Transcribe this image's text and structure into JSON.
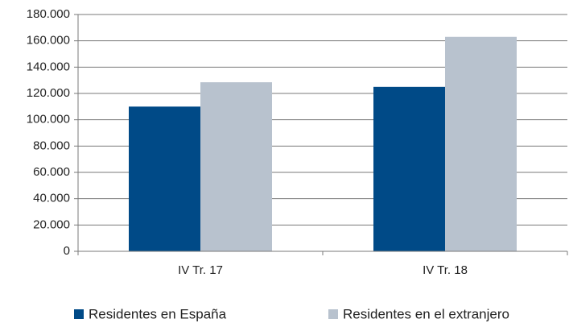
{
  "chart_data": {
    "type": "bar",
    "categories": [
      "IV Tr. 17",
      "IV Tr. 18"
    ],
    "series": [
      {
        "name": "Residentes en España",
        "color": "#004a87",
        "values": [
          110000,
          125000
        ]
      },
      {
        "name": "Residentes en el extranjero",
        "color": "#b8c2ce",
        "values": [
          128500,
          163000
        ]
      }
    ],
    "ylim": [
      0,
      180000
    ],
    "yticks": [
      0,
      {
        "value": 20000,
        "label": "20.000"
      },
      {
        "value": 40000,
        "label": "40.000"
      },
      {
        "value": 60000,
        "label": "60.000"
      },
      {
        "value": 80000,
        "label": "80.000"
      },
      {
        "value": 100000,
        "label": "100.000"
      },
      {
        "value": 120000,
        "label": "120.000"
      },
      {
        "value": 140000,
        "label": "140.000"
      },
      {
        "value": 160000,
        "label": "160.000"
      },
      {
        "value": 180000,
        "label": "180.000"
      }
    ],
    "grid": true,
    "legend": "bottom"
  }
}
